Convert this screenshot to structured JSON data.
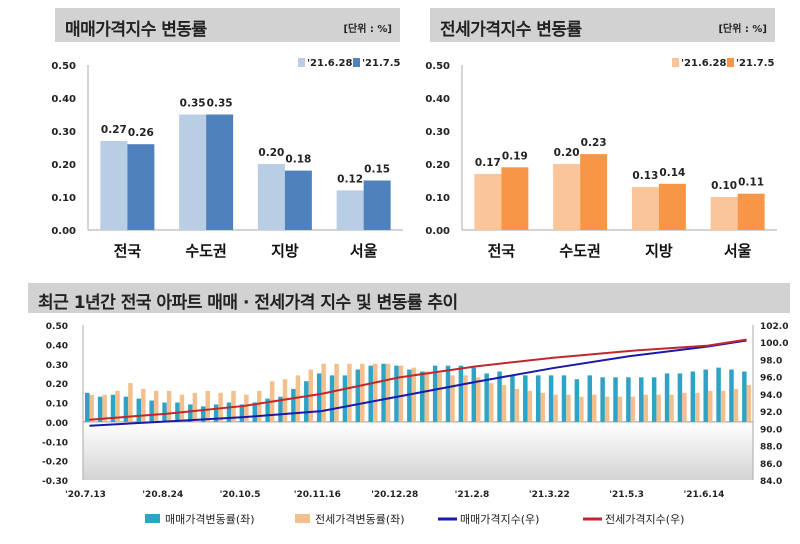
{
  "panels": [
    {
      "title": "매매가격지수 변동률",
      "unit": "[단위 : %]"
    },
    {
      "title": "전세가격지수 변동률",
      "unit": "[단위 : %]"
    },
    {
      "title": "최근 1년간 전국 아파트 매매 · 전세가격 지수 및 변동률 추이"
    }
  ],
  "chart_data": [
    {
      "type": "bar",
      "categories": [
        "전국",
        "수도권",
        "지방",
        "서울"
      ],
      "ylim": [
        0,
        0.5
      ],
      "yticks": [
        "0.00",
        "0.10",
        "0.20",
        "0.30",
        "0.40",
        "0.50"
      ],
      "legend": "top-right",
      "series": [
        {
          "name": "'21.6.28",
          "color": "#b9cde5",
          "values": [
            0.27,
            0.35,
            0.2,
            0.12
          ]
        },
        {
          "name": "'21.7.5",
          "color": "#4f81bd",
          "values": [
            0.26,
            0.35,
            0.18,
            0.15
          ]
        }
      ]
    },
    {
      "type": "bar",
      "categories": [
        "전국",
        "수도권",
        "지방",
        "서울"
      ],
      "ylim": [
        0,
        0.5
      ],
      "yticks": [
        "0.00",
        "0.10",
        "0.20",
        "0.30",
        "0.40",
        "0.50"
      ],
      "legend": "top-right",
      "series": [
        {
          "name": "'21.6.28",
          "color": "#fac59a",
          "values": [
            0.17,
            0.2,
            0.13,
            0.1
          ]
        },
        {
          "name": "'21.7.5",
          "color": "#f79646",
          "values": [
            0.19,
            0.23,
            0.14,
            0.11
          ]
        }
      ]
    },
    {
      "type": "bar+line",
      "x_ticks": [
        "'20.7.13",
        "'20.8.24",
        "'20.10.5",
        "'20.11.16",
        "'20.12.28",
        "'21.2.8",
        "'21.3.22",
        "'21.5.3",
        "'21.6.14"
      ],
      "ylim_left": [
        -0.3,
        0.5
      ],
      "yticks_left": [
        "0.50",
        "0.40",
        "0.30",
        "0.20",
        "0.10",
        "0.00",
        "-0.10",
        "-0.20",
        "-0.30"
      ],
      "ylim_right": [
        84,
        102
      ],
      "yticks_right": [
        "102.0",
        "100.0",
        "98.0",
        "96.0",
        "94.0",
        "92.0",
        "90.0",
        "88.0",
        "86.0",
        "84.0"
      ],
      "legend": "bottom",
      "bars": [
        {
          "name": "매매가격변동률(좌)",
          "color": "#2fa3c6",
          "values": [
            0.15,
            0.13,
            0.14,
            0.13,
            0.12,
            0.11,
            0.1,
            0.1,
            0.09,
            0.08,
            0.09,
            0.1,
            0.09,
            0.1,
            0.12,
            0.13,
            0.17,
            0.21,
            0.25,
            0.24,
            0.24,
            0.27,
            0.29,
            0.3,
            0.29,
            0.27,
            0.26,
            0.29,
            0.29,
            0.29,
            0.28,
            0.25,
            0.26,
            0.24,
            0.24,
            0.24,
            0.24,
            0.24,
            0.22,
            0.24,
            0.23,
            0.23,
            0.23,
            0.23,
            0.23,
            0.25,
            0.25,
            0.26,
            0.27,
            0.28,
            0.27,
            0.26
          ]
        },
        {
          "name": "전세가격변동률(좌)",
          "color": "#f2c08e",
          "values": [
            0.14,
            0.14,
            0.16,
            0.2,
            0.17,
            0.16,
            0.16,
            0.14,
            0.15,
            0.16,
            0.15,
            0.16,
            0.14,
            0.16,
            0.21,
            0.22,
            0.24,
            0.27,
            0.3,
            0.3,
            0.3,
            0.3,
            0.3,
            0.3,
            0.29,
            0.28,
            0.26,
            0.25,
            0.24,
            0.24,
            0.23,
            0.2,
            0.19,
            0.17,
            0.16,
            0.15,
            0.14,
            0.14,
            0.13,
            0.14,
            0.13,
            0.13,
            0.13,
            0.14,
            0.14,
            0.14,
            0.15,
            0.15,
            0.16,
            0.16,
            0.17,
            0.19
          ]
        }
      ],
      "lines": [
        {
          "name": "매매가격지수(우)",
          "color": "#1a1aa6",
          "x": [
            "'20.7.13",
            "'20.8.24",
            "'20.10.5",
            "'20.11.16",
            "'20.12.28",
            "'21.2.8",
            "'21.3.22",
            "'21.5.3",
            "'21.6.14",
            "'21.7.5"
          ],
          "values": [
            90.3,
            90.8,
            91.3,
            92.0,
            93.7,
            95.4,
            97.0,
            98.4,
            99.5,
            100.2
          ]
        },
        {
          "name": "전세가격지수(우)",
          "color": "#c0272d",
          "x": [
            "'20.7.13",
            "'20.8.24",
            "'20.10.5",
            "'20.11.16",
            "'20.12.28",
            "'21.2.8",
            "'21.3.22",
            "'21.5.3",
            "'21.6.14",
            "'21.7.5"
          ],
          "values": [
            91.0,
            91.7,
            92.6,
            94.0,
            95.9,
            97.2,
            98.2,
            99.0,
            99.6,
            100.3
          ]
        }
      ]
    }
  ]
}
